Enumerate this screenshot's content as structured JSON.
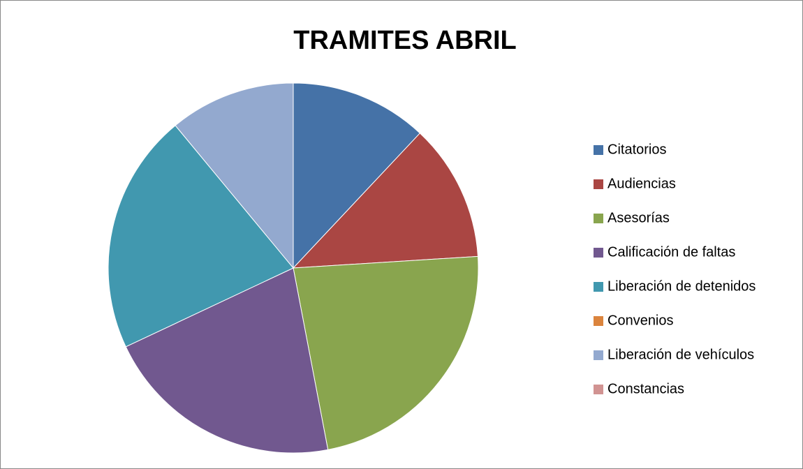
{
  "chart_data": {
    "type": "pie",
    "title": "TRAMITES ABRIL",
    "categories": [
      "Citatorios",
      "Audiencias",
      "Asesorías",
      "Calificación de faltas",
      "Liberación de detenidos",
      "Convenios",
      "Liberación de vehículos",
      "Constancias"
    ],
    "values": [
      12,
      12,
      23,
      21,
      21,
      0,
      11,
      0
    ],
    "colors": [
      "#4572a7",
      "#aa4643",
      "#89a54e",
      "#71588f",
      "#4198af",
      "#db843d",
      "#93a9cf",
      "#d19392"
    ],
    "legend": "right"
  }
}
